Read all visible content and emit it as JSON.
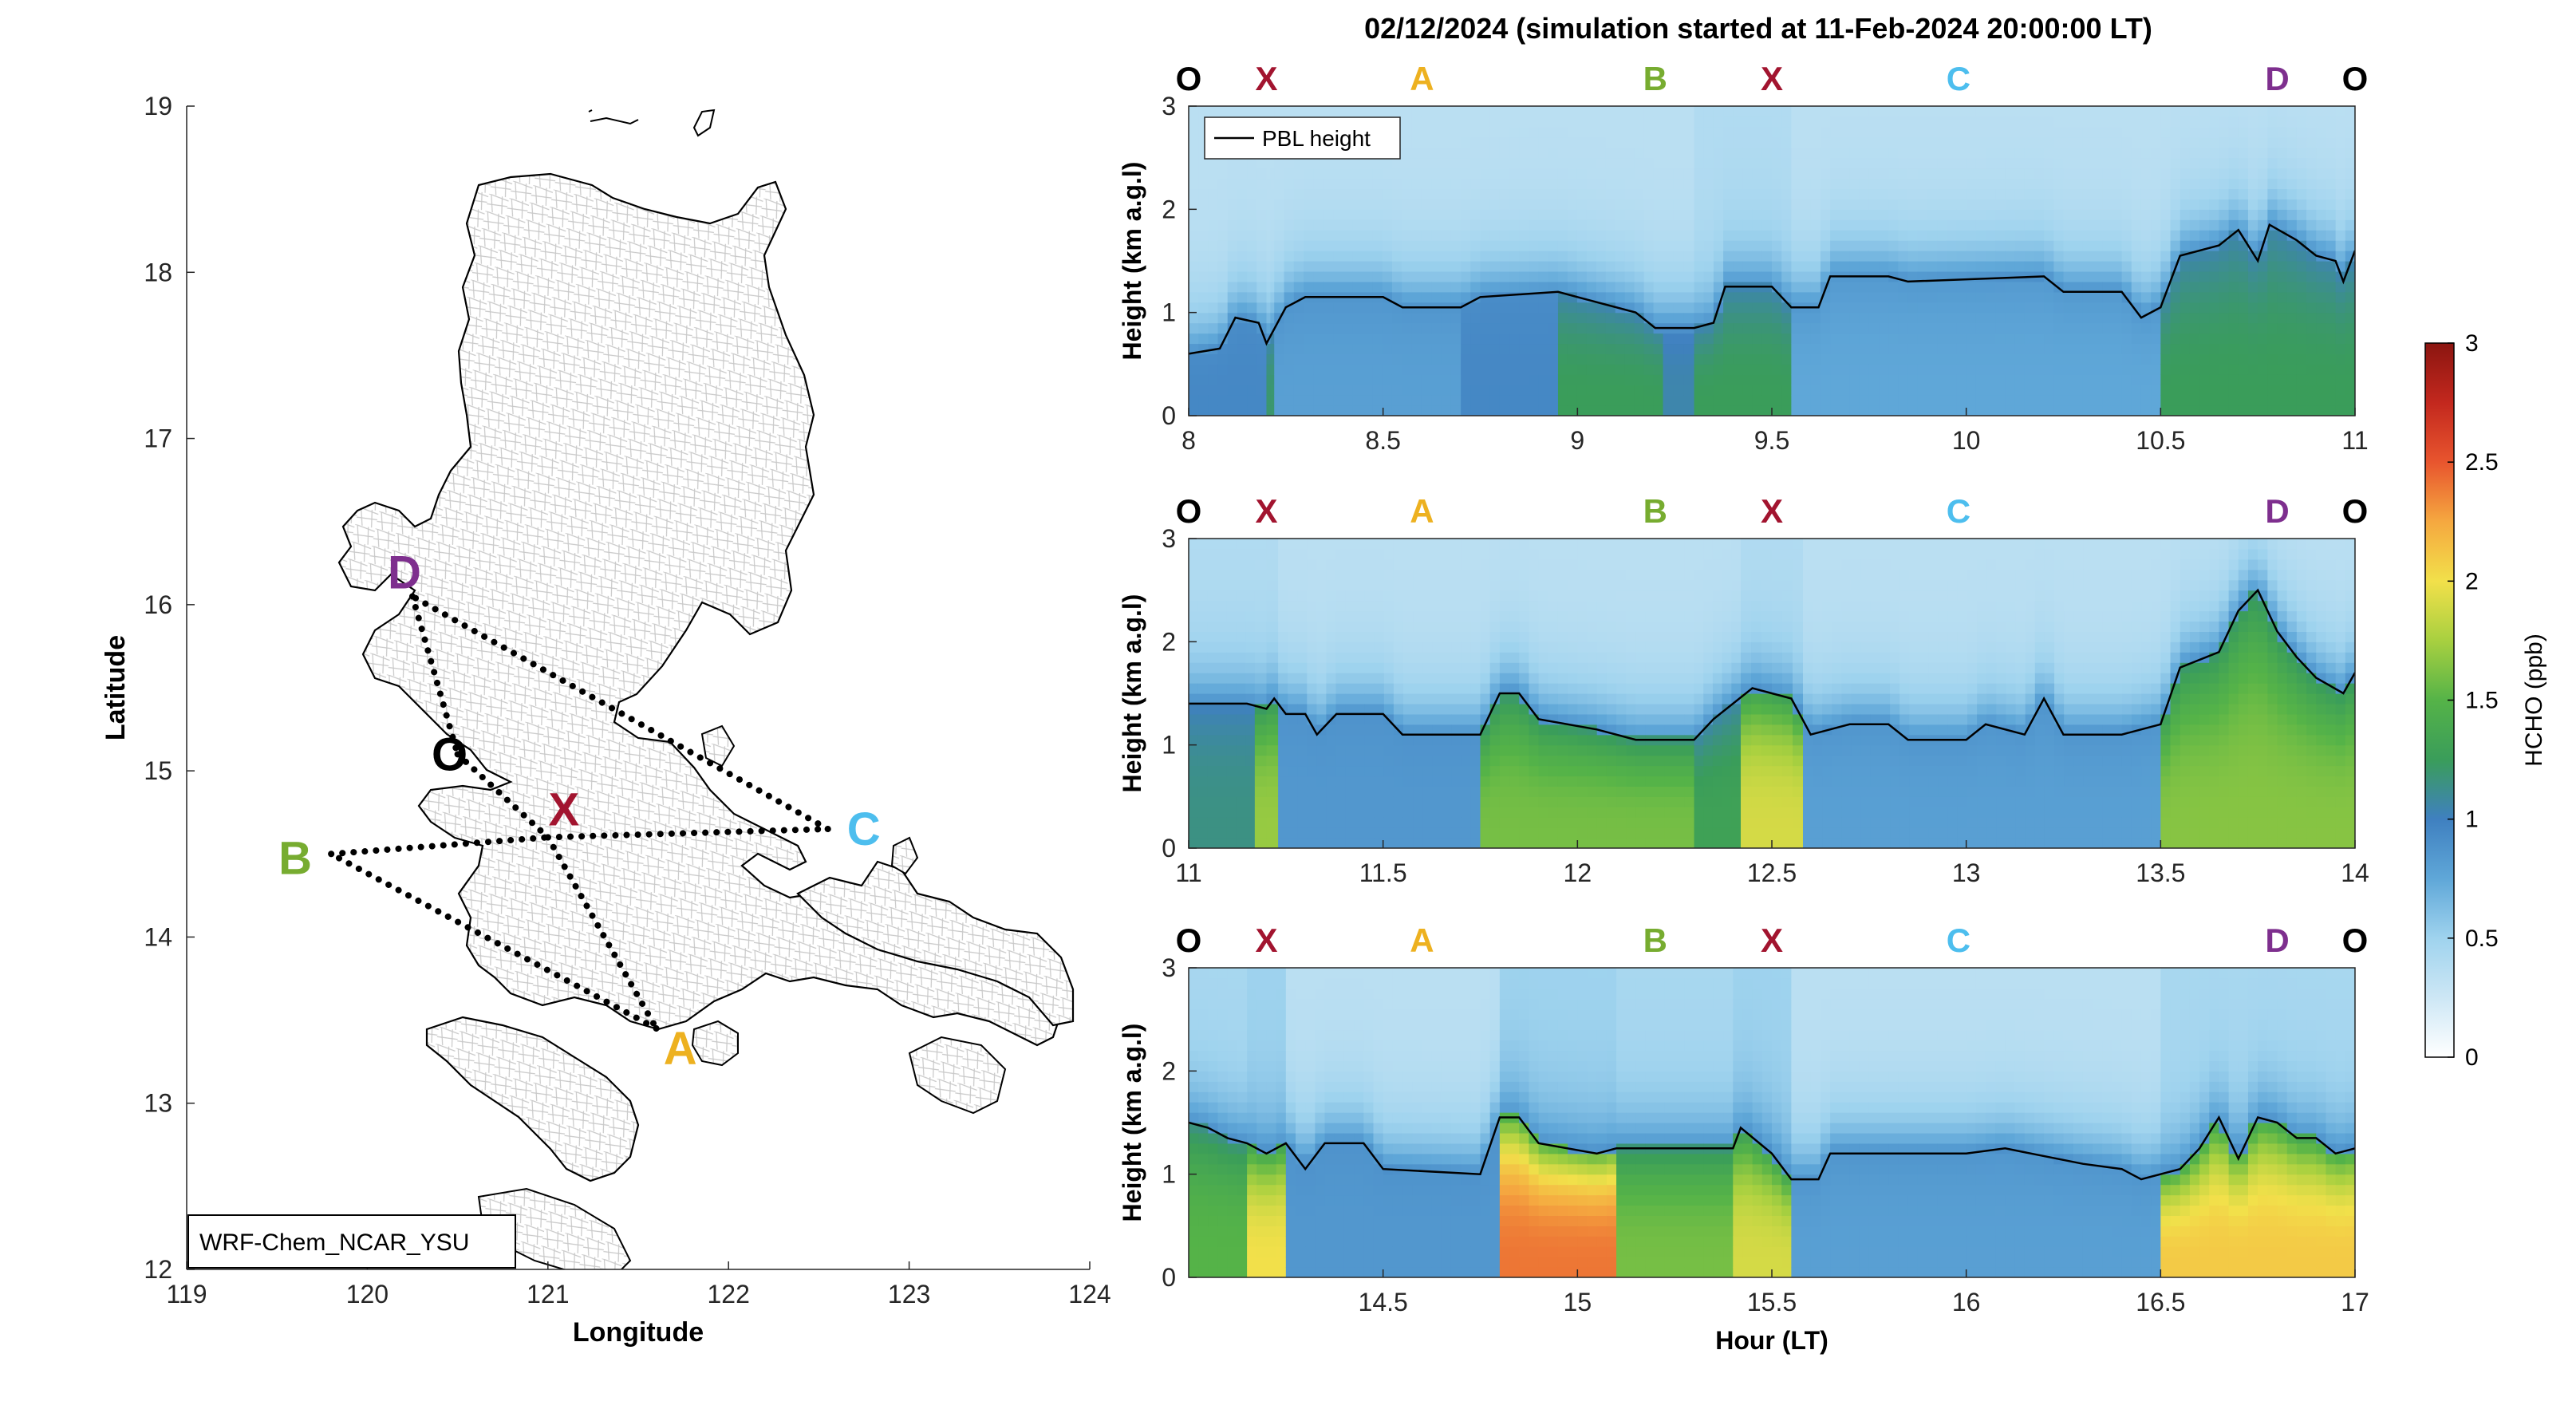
{
  "title": "02/12/2024 (simulation started at 11-Feb-2024 20:00:00 LT)",
  "colors": {
    "O": "#000000",
    "X": "#a2142f",
    "A": "#edb120",
    "B": "#77ac30",
    "C": "#4dbeee",
    "D": "#7e2f8e",
    "pbl_line": "#000000",
    "map_outline": "#000000",
    "map_borders": "#c8c8c8"
  },
  "map": {
    "xlabel": "Longitude",
    "ylabel": "Latitude",
    "xlim": [
      119,
      124
    ],
    "ylim": [
      12,
      19
    ],
    "xticks": [
      119,
      120,
      121,
      122,
      123,
      124
    ],
    "yticks": [
      12,
      13,
      14,
      15,
      16,
      17,
      18,
      19
    ],
    "model_label": "WRF-Chem_NCAR_YSU",
    "sites": [
      {
        "label": "D",
        "lon": 120.25,
        "lat": 16.05
      },
      {
        "label": "O",
        "lon": 120.5,
        "lat": 15.1
      },
      {
        "label": "X",
        "lon": 121.0,
        "lat": 14.6
      },
      {
        "label": "B",
        "lon": 119.8,
        "lat": 14.5
      },
      {
        "label": "C",
        "lon": 122.55,
        "lat": 14.65
      },
      {
        "label": "A",
        "lon": 121.6,
        "lat": 13.45
      }
    ],
    "route": [
      "O",
      "X",
      "A",
      "B",
      "X",
      "C",
      "D",
      "O"
    ]
  },
  "colorbar": {
    "label": "HCHO (ppb)",
    "range": [
      0,
      3
    ],
    "ticks": [
      0,
      0.5,
      1,
      1.5,
      2,
      2.5,
      3
    ],
    "tick_labels": [
      "0",
      "0.5",
      "1",
      "1.5",
      "2",
      "2.5",
      "3"
    ],
    "colormap": [
      "#ffffff",
      "#cde7f5",
      "#9fd3ee",
      "#5fa7d8",
      "#3f80c0",
      "#3a9d5a",
      "#55b348",
      "#a8d040",
      "#f2e04a",
      "#f5a840",
      "#e8552e",
      "#c3281e",
      "#8b1510"
    ]
  },
  "chart_data": [
    {
      "type": "heatmap",
      "xlabel": "",
      "ylabel": "Height (km a.g.l)",
      "xlim": [
        8,
        11
      ],
      "ylim": [
        0,
        3
      ],
      "xticks": [
        8,
        8.5,
        9,
        9.5,
        10,
        10.5,
        11
      ],
      "yticks": [
        0,
        1,
        2,
        3
      ],
      "legend": "PBL height",
      "legend_loc": "top-left",
      "waypoints": [
        {
          "label": "O",
          "x": 8.0
        },
        {
          "label": "X",
          "x": 8.2
        },
        {
          "label": "A",
          "x": 8.6
        },
        {
          "label": "B",
          "x": 9.2
        },
        {
          "label": "X",
          "x": 9.5
        },
        {
          "label": "C",
          "x": 9.98
        },
        {
          "label": "D",
          "x": 10.8
        },
        {
          "label": "O",
          "x": 11.0
        }
      ],
      "pbl_height_km": [
        [
          8.0,
          0.6
        ],
        [
          8.08,
          0.65
        ],
        [
          8.12,
          0.95
        ],
        [
          8.18,
          0.9
        ],
        [
          8.2,
          0.7
        ],
        [
          8.25,
          1.05
        ],
        [
          8.3,
          1.15
        ],
        [
          8.5,
          1.15
        ],
        [
          8.55,
          1.05
        ],
        [
          8.7,
          1.05
        ],
        [
          8.75,
          1.15
        ],
        [
          8.95,
          1.2
        ],
        [
          9.0,
          1.15
        ],
        [
          9.15,
          1.0
        ],
        [
          9.2,
          0.85
        ],
        [
          9.3,
          0.85
        ],
        [
          9.35,
          0.9
        ],
        [
          9.38,
          1.25
        ],
        [
          9.5,
          1.25
        ],
        [
          9.55,
          1.05
        ],
        [
          9.62,
          1.05
        ],
        [
          9.65,
          1.35
        ],
        [
          9.8,
          1.35
        ],
        [
          9.85,
          1.3
        ],
        [
          10.2,
          1.35
        ],
        [
          10.25,
          1.2
        ],
        [
          10.4,
          1.2
        ],
        [
          10.45,
          0.95
        ],
        [
          10.5,
          1.05
        ],
        [
          10.55,
          1.55
        ],
        [
          10.65,
          1.65
        ],
        [
          10.7,
          1.8
        ],
        [
          10.75,
          1.5
        ],
        [
          10.78,
          1.85
        ],
        [
          10.85,
          1.7
        ],
        [
          10.9,
          1.55
        ],
        [
          10.95,
          1.5
        ],
        [
          10.97,
          1.3
        ],
        [
          11.0,
          1.6
        ]
      ],
      "hcho_ppb": [
        {
          "x0": 8.0,
          "x1": 8.2,
          "surface": 0.95,
          "top": 0.35
        },
        {
          "x0": 8.2,
          "x1": 8.22,
          "surface": 1.2,
          "top": 0.35
        },
        {
          "x0": 8.22,
          "x1": 8.7,
          "surface": 0.8,
          "top": 0.35
        },
        {
          "x0": 8.7,
          "x1": 8.95,
          "surface": 0.95,
          "top": 0.35
        },
        {
          "x0": 8.95,
          "x1": 9.22,
          "surface": 1.25,
          "top": 0.35
        },
        {
          "x0": 9.22,
          "x1": 9.3,
          "surface": 1.05,
          "top": 0.35
        },
        {
          "x0": 9.3,
          "x1": 9.55,
          "surface": 1.25,
          "top": 0.4
        },
        {
          "x0": 9.55,
          "x1": 10.5,
          "surface": 0.75,
          "top": 0.35
        },
        {
          "x0": 10.5,
          "x1": 11.0,
          "surface": 1.25,
          "top": 0.35
        }
      ]
    },
    {
      "type": "heatmap",
      "xlabel": "",
      "ylabel": "Height (km a.g.l)",
      "xlim": [
        11,
        14
      ],
      "ylim": [
        0,
        3
      ],
      "xticks": [
        11,
        11.5,
        12,
        12.5,
        13,
        13.5,
        14
      ],
      "yticks": [
        0,
        1,
        2,
        3
      ],
      "waypoints": [
        {
          "label": "O",
          "x": 11.0
        },
        {
          "label": "X",
          "x": 11.2
        },
        {
          "label": "A",
          "x": 11.6
        },
        {
          "label": "B",
          "x": 12.2
        },
        {
          "label": "X",
          "x": 12.5
        },
        {
          "label": "C",
          "x": 12.98
        },
        {
          "label": "D",
          "x": 13.8
        },
        {
          "label": "O",
          "x": 14.0
        }
      ],
      "pbl_height_km": [
        [
          11.0,
          1.4
        ],
        [
          11.15,
          1.4
        ],
        [
          11.2,
          1.35
        ],
        [
          11.22,
          1.45
        ],
        [
          11.25,
          1.3
        ],
        [
          11.3,
          1.3
        ],
        [
          11.33,
          1.1
        ],
        [
          11.38,
          1.3
        ],
        [
          11.5,
          1.3
        ],
        [
          11.55,
          1.1
        ],
        [
          11.75,
          1.1
        ],
        [
          11.8,
          1.5
        ],
        [
          11.85,
          1.5
        ],
        [
          11.9,
          1.25
        ],
        [
          12.05,
          1.15
        ],
        [
          12.15,
          1.05
        ],
        [
          12.3,
          1.05
        ],
        [
          12.35,
          1.25
        ],
        [
          12.45,
          1.55
        ],
        [
          12.55,
          1.45
        ],
        [
          12.6,
          1.1
        ],
        [
          12.7,
          1.2
        ],
        [
          12.8,
          1.2
        ],
        [
          12.85,
          1.05
        ],
        [
          13.0,
          1.05
        ],
        [
          13.05,
          1.2
        ],
        [
          13.15,
          1.1
        ],
        [
          13.2,
          1.45
        ],
        [
          13.25,
          1.1
        ],
        [
          13.4,
          1.1
        ],
        [
          13.5,
          1.2
        ],
        [
          13.55,
          1.75
        ],
        [
          13.65,
          1.9
        ],
        [
          13.7,
          2.3
        ],
        [
          13.75,
          2.5
        ],
        [
          13.8,
          2.1
        ],
        [
          13.85,
          1.85
        ],
        [
          13.9,
          1.65
        ],
        [
          13.97,
          1.5
        ],
        [
          14.0,
          1.7
        ]
      ],
      "hcho_ppb": [
        {
          "x0": 11.0,
          "x1": 11.17,
          "surface": 1.15,
          "top": 0.4
        },
        {
          "x0": 11.17,
          "x1": 11.23,
          "surface": 1.7,
          "top": 0.4
        },
        {
          "x0": 11.23,
          "x1": 11.75,
          "surface": 0.85,
          "top": 0.35
        },
        {
          "x0": 11.75,
          "x1": 12.3,
          "surface": 1.6,
          "top": 0.35
        },
        {
          "x0": 12.3,
          "x1": 12.42,
          "surface": 1.3,
          "top": 0.35
        },
        {
          "x0": 12.42,
          "x1": 12.58,
          "surface": 1.9,
          "top": 0.4
        },
        {
          "x0": 12.58,
          "x1": 13.5,
          "surface": 0.8,
          "top": 0.35
        },
        {
          "x0": 13.5,
          "x1": 14.0,
          "surface": 1.65,
          "top": 0.35
        }
      ]
    },
    {
      "type": "heatmap",
      "xlabel": "Hour (LT)",
      "ylabel": "Height (km a.g.l)",
      "xlim": [
        14,
        17
      ],
      "ylim": [
        0,
        3
      ],
      "xticks": [
        14.5,
        15,
        15.5,
        16,
        16.5,
        17
      ],
      "yticks": [
        0,
        1,
        2,
        3
      ],
      "waypoints": [
        {
          "label": "O",
          "x": 14.0
        },
        {
          "label": "X",
          "x": 14.2
        },
        {
          "label": "A",
          "x": 14.6
        },
        {
          "label": "B",
          "x": 15.2
        },
        {
          "label": "X",
          "x": 15.5
        },
        {
          "label": "C",
          "x": 15.98
        },
        {
          "label": "D",
          "x": 16.8
        },
        {
          "label": "O",
          "x": 17.0
        }
      ],
      "pbl_height_km": [
        [
          14.0,
          1.5
        ],
        [
          14.05,
          1.45
        ],
        [
          14.1,
          1.35
        ],
        [
          14.15,
          1.3
        ],
        [
          14.2,
          1.2
        ],
        [
          14.25,
          1.3
        ],
        [
          14.3,
          1.05
        ],
        [
          14.35,
          1.3
        ],
        [
          14.45,
          1.3
        ],
        [
          14.5,
          1.05
        ],
        [
          14.75,
          1.0
        ],
        [
          14.8,
          1.55
        ],
        [
          14.85,
          1.55
        ],
        [
          14.9,
          1.3
        ],
        [
          15.05,
          1.2
        ],
        [
          15.1,
          1.25
        ],
        [
          15.4,
          1.25
        ],
        [
          15.42,
          1.45
        ],
        [
          15.5,
          1.2
        ],
        [
          15.55,
          0.95
        ],
        [
          15.62,
          0.95
        ],
        [
          15.65,
          1.2
        ],
        [
          16.0,
          1.2
        ],
        [
          16.1,
          1.25
        ],
        [
          16.3,
          1.1
        ],
        [
          16.4,
          1.05
        ],
        [
          16.45,
          0.95
        ],
        [
          16.55,
          1.05
        ],
        [
          16.6,
          1.25
        ],
        [
          16.65,
          1.55
        ],
        [
          16.7,
          1.15
        ],
        [
          16.75,
          1.55
        ],
        [
          16.8,
          1.5
        ],
        [
          16.85,
          1.35
        ],
        [
          16.9,
          1.35
        ],
        [
          16.95,
          1.2
        ],
        [
          17.0,
          1.25
        ]
      ],
      "hcho_ppb": [
        {
          "x0": 14.0,
          "x1": 14.15,
          "surface": 1.5,
          "top": 0.45
        },
        {
          "x0": 14.15,
          "x1": 14.25,
          "surface": 2.0,
          "top": 0.5
        },
        {
          "x0": 14.25,
          "x1": 14.8,
          "surface": 0.85,
          "top": 0.35
        },
        {
          "x0": 14.8,
          "x1": 15.1,
          "surface": 2.4,
          "top": 0.5
        },
        {
          "x0": 15.1,
          "x1": 15.4,
          "surface": 1.6,
          "top": 0.45
        },
        {
          "x0": 15.4,
          "x1": 15.55,
          "surface": 1.9,
          "top": 0.5
        },
        {
          "x0": 15.55,
          "x1": 16.5,
          "surface": 0.8,
          "top": 0.35
        },
        {
          "x0": 16.5,
          "x1": 17.0,
          "surface": 2.1,
          "top": 0.45
        }
      ]
    }
  ]
}
